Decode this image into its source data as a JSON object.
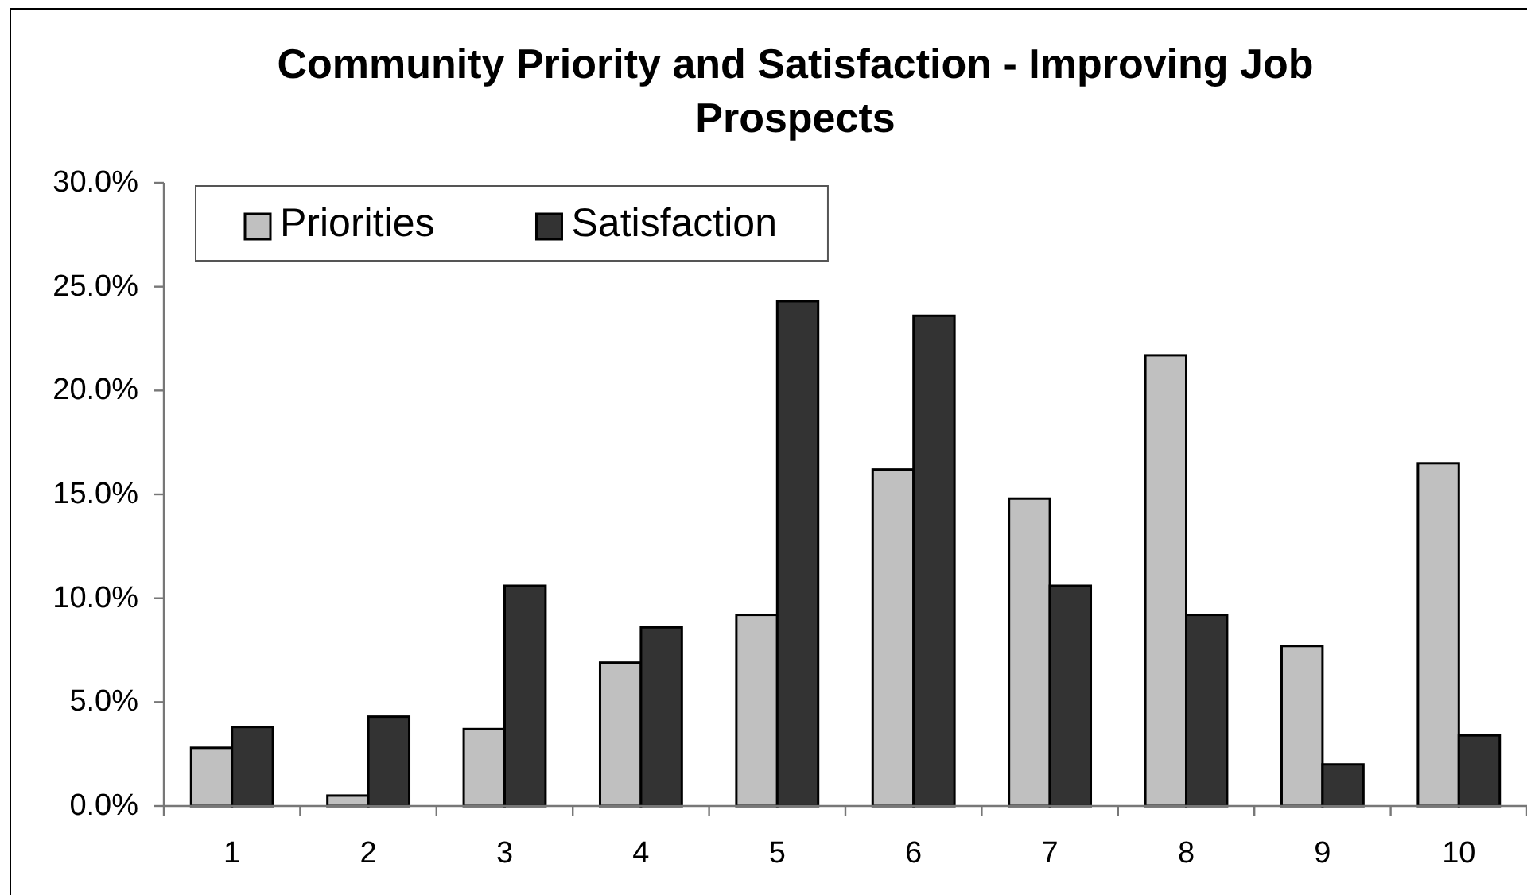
{
  "chart_data": {
    "type": "bar",
    "title": "Community Priority and Satisfaction - Improving Job Prospects",
    "categories": [
      "1",
      "2",
      "3",
      "4",
      "5",
      "6",
      "7",
      "8",
      "9",
      "10"
    ],
    "series": [
      {
        "name": "Priorities",
        "color": "#c0c0c0",
        "values": [
          2.8,
          0.5,
          3.7,
          6.9,
          9.2,
          16.2,
          14.8,
          21.7,
          7.7,
          16.5
        ]
      },
      {
        "name": "Satisfaction",
        "color": "#333333",
        "values": [
          3.8,
          4.3,
          10.6,
          8.6,
          24.3,
          23.6,
          10.6,
          9.2,
          2.0,
          3.4
        ]
      }
    ],
    "ylim": [
      0,
      30
    ],
    "yticks": [
      {
        "value": 0,
        "label": "0.0%"
      },
      {
        "value": 5,
        "label": "5.0%"
      },
      {
        "value": 10,
        "label": "10.0%"
      },
      {
        "value": 15,
        "label": "15.0%"
      },
      {
        "value": 20,
        "label": "20.0%"
      },
      {
        "value": 25,
        "label": "25.0%"
      },
      {
        "value": 30,
        "label": "30.0%"
      }
    ],
    "legend": "top left"
  }
}
